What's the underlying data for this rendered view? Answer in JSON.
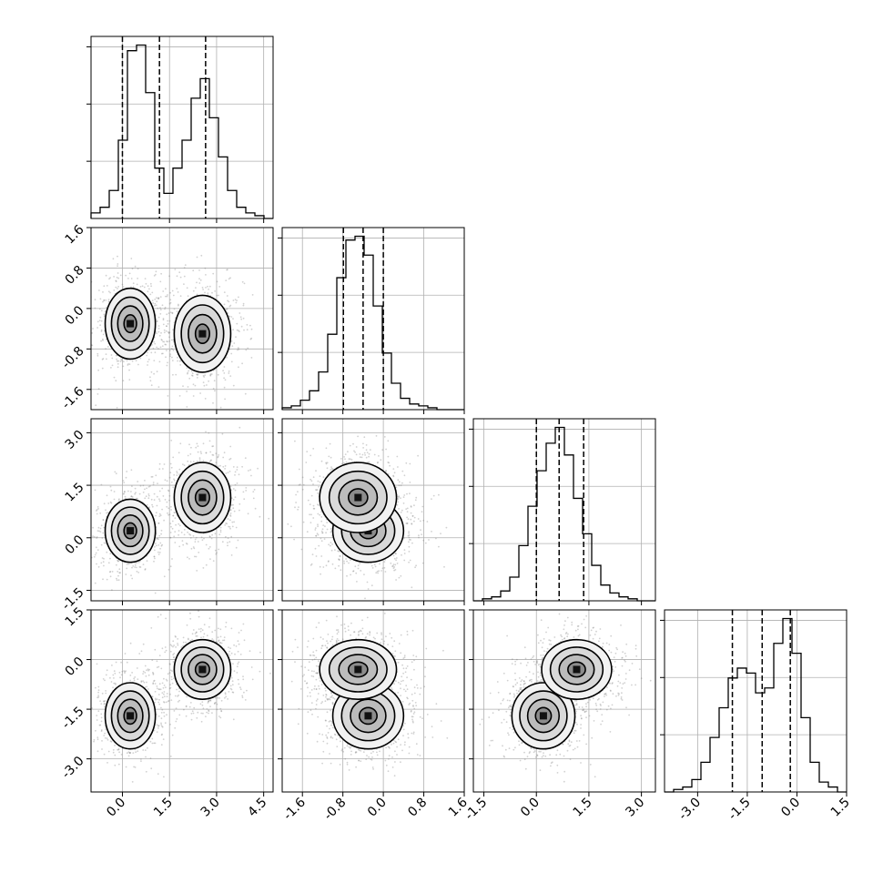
{
  "chart_data": {
    "type": "corner",
    "grid": true,
    "parameters": [
      {
        "range": [
          -1.0,
          4.8
        ],
        "ticks": [
          "0.0",
          "1.5",
          "3.0",
          "4.5"
        ],
        "tick_values": [
          0.0,
          1.5,
          3.0,
          4.5
        ],
        "quantiles": [
          0.0,
          1.18,
          2.65
        ]
      },
      {
        "range": [
          -2.0,
          1.6
        ],
        "ticks": [
          "-1.6",
          "-0.8",
          "0.0",
          "0.8",
          "1.6"
        ],
        "tick_values": [
          -1.6,
          -0.8,
          0.0,
          0.8,
          1.6
        ],
        "quantiles": [
          -0.79,
          -0.4,
          0.0
        ]
      },
      {
        "range": [
          -1.8,
          3.4
        ],
        "ticks": [
          "-1.5",
          "0.0",
          "1.5",
          "3.0"
        ],
        "tick_values": [
          -1.5,
          0.0,
          1.5,
          3.0
        ],
        "quantiles": [
          0.0,
          0.65,
          1.35
        ]
      },
      {
        "range": [
          -4.0,
          1.5
        ],
        "ticks": [
          "-3.0",
          "-1.5",
          "0.0",
          "1.5"
        ],
        "tick_values": [
          -3.0,
          -1.5,
          0.0,
          1.5
        ],
        "quantiles": [
          -1.95,
          -1.05,
          -0.2
        ]
      }
    ],
    "histograms": [
      {
        "bins": 20,
        "counts": [
          2,
          4,
          10,
          28,
          60,
          62,
          45,
          18,
          9,
          18,
          28,
          43,
          50,
          36,
          22,
          10,
          4,
          2,
          1,
          0
        ]
      },
      {
        "bins": 20,
        "counts": [
          1,
          2,
          5,
          10,
          20,
          40,
          70,
          90,
          92,
          82,
          55,
          30,
          14,
          6,
          3,
          2,
          1,
          0,
          0,
          0
        ]
      },
      {
        "bins": 20,
        "counts": [
          0,
          1,
          2,
          5,
          12,
          28,
          48,
          66,
          80,
          88,
          74,
          52,
          34,
          18,
          8,
          4,
          2,
          1,
          0,
          0
        ]
      },
      {
        "bins": 20,
        "counts": [
          0,
          1,
          2,
          5,
          12,
          22,
          34,
          46,
          50,
          48,
          40,
          42,
          60,
          70,
          56,
          30,
          12,
          4,
          2,
          0
        ]
      }
    ],
    "modes": [
      {
        "weight": 0.5,
        "mean": [
          0.25,
          -0.3,
          0.2,
          -1.7
        ],
        "sd": [
          0.4,
          0.35,
          0.45,
          0.5
        ]
      },
      {
        "weight": 0.5,
        "mean": [
          2.55,
          -0.5,
          1.15,
          -0.3
        ],
        "sd": [
          0.45,
          0.38,
          0.5,
          0.45
        ]
      }
    ]
  }
}
